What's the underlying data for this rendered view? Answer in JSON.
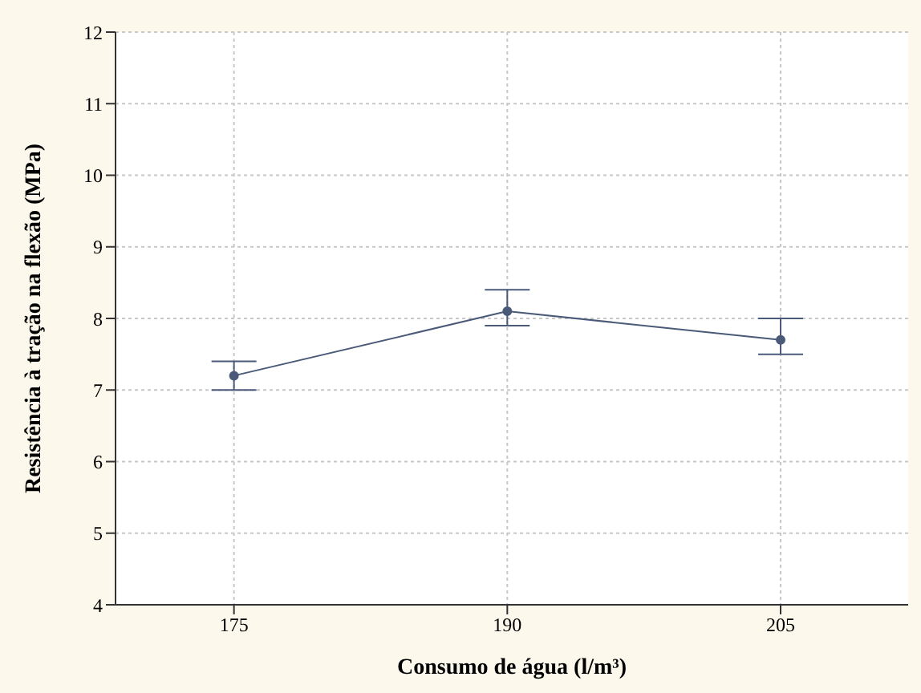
{
  "chart_data": {
    "type": "line",
    "xlabel": "Consumo de água (l/m³)",
    "ylabel": "Resistência à tração na flexão (MPa)",
    "x": [
      175,
      190,
      205
    ],
    "series": [
      {
        "color": "#4a5a78",
        "values": [
          7.2,
          8.1,
          7.7
        ],
        "errors": [
          [
            7.0,
            7.4
          ],
          [
            7.9,
            8.4
          ],
          [
            7.5,
            8.0
          ]
        ]
      }
    ],
    "xlim": [
      168.5,
      212
    ],
    "xticks": [
      175,
      190,
      205
    ],
    "ylim": [
      4,
      12
    ],
    "yticks": [
      4,
      5,
      6,
      7,
      8,
      9,
      10,
      11,
      12
    ],
    "grid": true,
    "marker": "circle",
    "line_style": "solid",
    "legend": false
  }
}
